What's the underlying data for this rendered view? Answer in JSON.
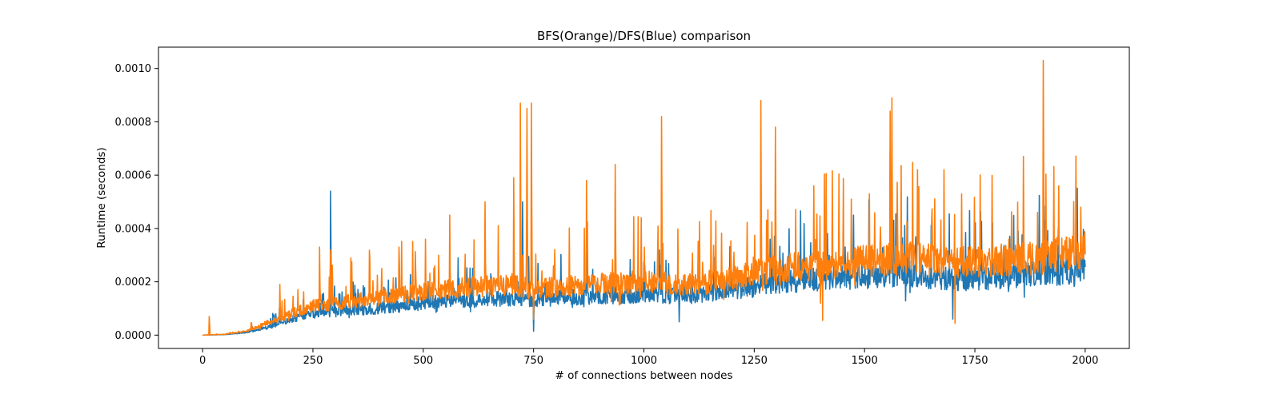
{
  "chart_data": {
    "type": "line",
    "title": "BFS(Orange)/DFS(Blue) comparison",
    "xlabel": "# of connections between nodes",
    "ylabel": "Runtime (seconds)",
    "xlim": [
      -100,
      2100
    ],
    "ylim": [
      -5e-05,
      0.00108
    ],
    "x_ticks": [
      0,
      250,
      500,
      750,
      1000,
      1250,
      1500,
      1750,
      2000
    ],
    "x_tick_labels": [
      "0",
      "250",
      "500",
      "750",
      "1000",
      "1250",
      "1500",
      "1750",
      "2000"
    ],
    "y_ticks": [
      0,
      0.0002,
      0.0004,
      0.0006,
      0.0008,
      0.001
    ],
    "y_tick_labels": [
      "0.0000",
      "0.0002",
      "0.0004",
      "0.0006",
      "0.0008",
      "0.0010"
    ],
    "grid": false,
    "legend": "none",
    "x_sampling": {
      "start": 0,
      "end": 2000,
      "points": 2001
    },
    "series": [
      {
        "color": "#1f77b4",
        "baseline_x": [
          0,
          50,
          100,
          150,
          200,
          250,
          300,
          400,
          500,
          600,
          700,
          750,
          800,
          900,
          1000,
          1100,
          1200,
          1300,
          1400,
          1500,
          1600,
          1700,
          1800,
          1900,
          2000
        ],
        "baseline_y": [
          0,
          2e-06,
          1e-05,
          3e-05,
          6e-05,
          8e-05,
          9e-05,
          0.0001,
          0.00012,
          0.00013,
          0.00014,
          0.00013,
          0.00014,
          0.00015,
          0.00015,
          0.00015,
          0.00017,
          0.0002,
          0.00021,
          0.00022,
          0.00023,
          0.00021,
          0.00022,
          0.00023,
          0.00025
        ],
        "spikes": [
          {
            "x": 290,
            "y": 0.00054
          },
          {
            "x": 725,
            "y": 0.0005
          },
          {
            "x": 870,
            "y": 0.00035
          },
          {
            "x": 1040,
            "y": 0.00045
          },
          {
            "x": 1475,
            "y": 0.00045
          },
          {
            "x": 1558,
            "y": 0.00069
          },
          {
            "x": 1760,
            "y": 0.00027
          },
          {
            "x": 1910,
            "y": 0.00043
          },
          {
            "x": 1950,
            "y": 0.00032
          },
          {
            "x": 1700,
            "y": 6e-05
          },
          {
            "x": 1080,
            "y": 5e-05
          },
          {
            "x": 750,
            "y": 1.5e-05
          }
        ]
      },
      {
        "color": "#ff7f0e",
        "baseline_x": [
          0,
          50,
          100,
          150,
          200,
          250,
          300,
          400,
          500,
          600,
          700,
          750,
          800,
          900,
          1000,
          1100,
          1200,
          1300,
          1400,
          1500,
          1600,
          1700,
          1800,
          1900,
          2000
        ],
        "baseline_y": [
          0,
          3e-06,
          1.5e-05,
          5e-05,
          8e-05,
          0.00011,
          0.00012,
          0.00014,
          0.00016,
          0.00018,
          0.00019,
          0.00017,
          0.00018,
          0.00019,
          0.0002,
          0.00019,
          0.00021,
          0.00025,
          0.00026,
          0.00028,
          0.00029,
          0.00027,
          0.00028,
          0.00029,
          0.00032
        ],
        "spikes": [
          {
            "x": 15,
            "y": 7e-05
          },
          {
            "x": 175,
            "y": 0.00019
          },
          {
            "x": 265,
            "y": 0.00033
          },
          {
            "x": 290,
            "y": 0.00032
          },
          {
            "x": 445,
            "y": 0.00033
          },
          {
            "x": 505,
            "y": 0.00036
          },
          {
            "x": 560,
            "y": 0.00045
          },
          {
            "x": 640,
            "y": 0.0005
          },
          {
            "x": 705,
            "y": 0.00059
          },
          {
            "x": 720,
            "y": 0.00087
          },
          {
            "x": 735,
            "y": 0.00085
          },
          {
            "x": 745,
            "y": 0.00087
          },
          {
            "x": 870,
            "y": 0.00058
          },
          {
            "x": 935,
            "y": 0.00064
          },
          {
            "x": 1040,
            "y": 0.00082
          },
          {
            "x": 1265,
            "y": 0.00088
          },
          {
            "x": 1298,
            "y": 0.00078
          },
          {
            "x": 1385,
            "y": 0.00056
          },
          {
            "x": 1470,
            "y": 0.00051
          },
          {
            "x": 1558,
            "y": 0.00084
          },
          {
            "x": 1562,
            "y": 0.00089
          },
          {
            "x": 1620,
            "y": 0.00062
          },
          {
            "x": 1680,
            "y": 0.00062
          },
          {
            "x": 1720,
            "y": 0.00053
          },
          {
            "x": 1860,
            "y": 0.00067
          },
          {
            "x": 1905,
            "y": 0.00103
          },
          {
            "x": 1940,
            "y": 0.00056
          },
          {
            "x": 1990,
            "y": 0.00048
          },
          {
            "x": 1405,
            "y": 5.5e-05
          },
          {
            "x": 1705,
            "y": 4.5e-05
          },
          {
            "x": 1400,
            "y": 0.00012
          },
          {
            "x": 750,
            "y": 6e-05
          }
        ]
      }
    ]
  }
}
